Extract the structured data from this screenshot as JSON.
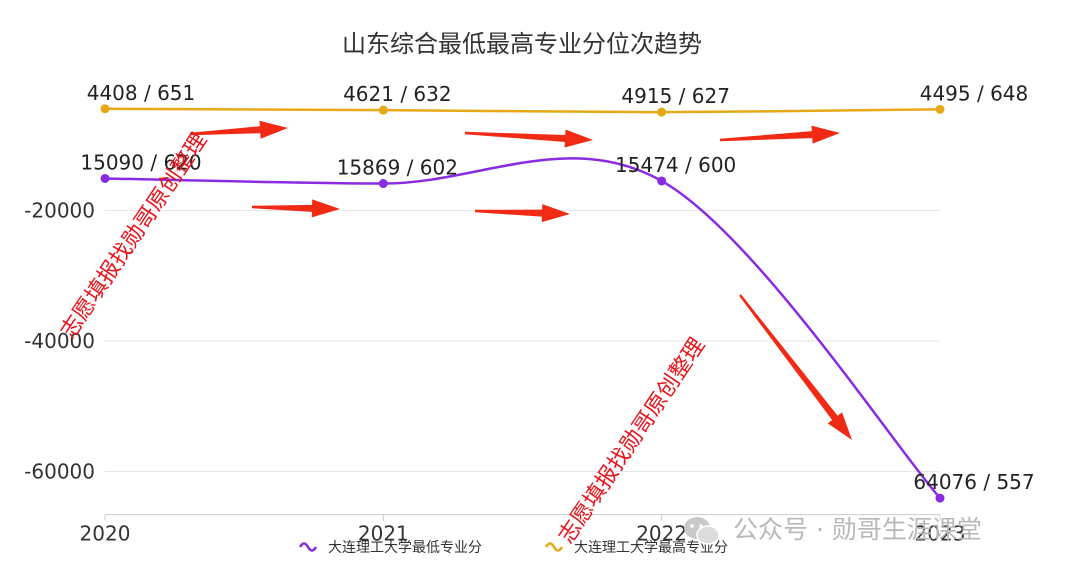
{
  "chart_data": {
    "type": "line",
    "title": "山东综合最低最高专业分位次趋势",
    "x": [
      "2020",
      "2021",
      "2022",
      "2023"
    ],
    "y_ticks": [
      "-20000",
      "-40000",
      "-60000"
    ],
    "ylim": [
      -66000,
      0
    ],
    "grid": true,
    "legend_position": "bottom",
    "series": [
      {
        "name": "大连理工大学最低专业分",
        "color": "#8a2be2",
        "values": [
          -15090,
          -15869,
          -15474,
          -64076
        ],
        "labels": [
          "15090 / 620",
          "15869 / 602",
          "15474 / 600",
          "64076 / 557"
        ]
      },
      {
        "name": "大连理工大学最高专业分",
        "color": "#e6a817",
        "values": [
          -4408,
          -4621,
          -4915,
          -4495
        ],
        "labels": [
          "4408 / 651",
          "4621 / 632",
          "4915 / 627",
          "4495 / 648"
        ]
      }
    ]
  },
  "watermark": "志愿填报找勋哥原创整理",
  "brand": "公众号 · 勋哥生涯课堂",
  "colors": {
    "arrow": "#f02a14",
    "grid": "#e6e6e6",
    "axis": "#cccccc"
  }
}
